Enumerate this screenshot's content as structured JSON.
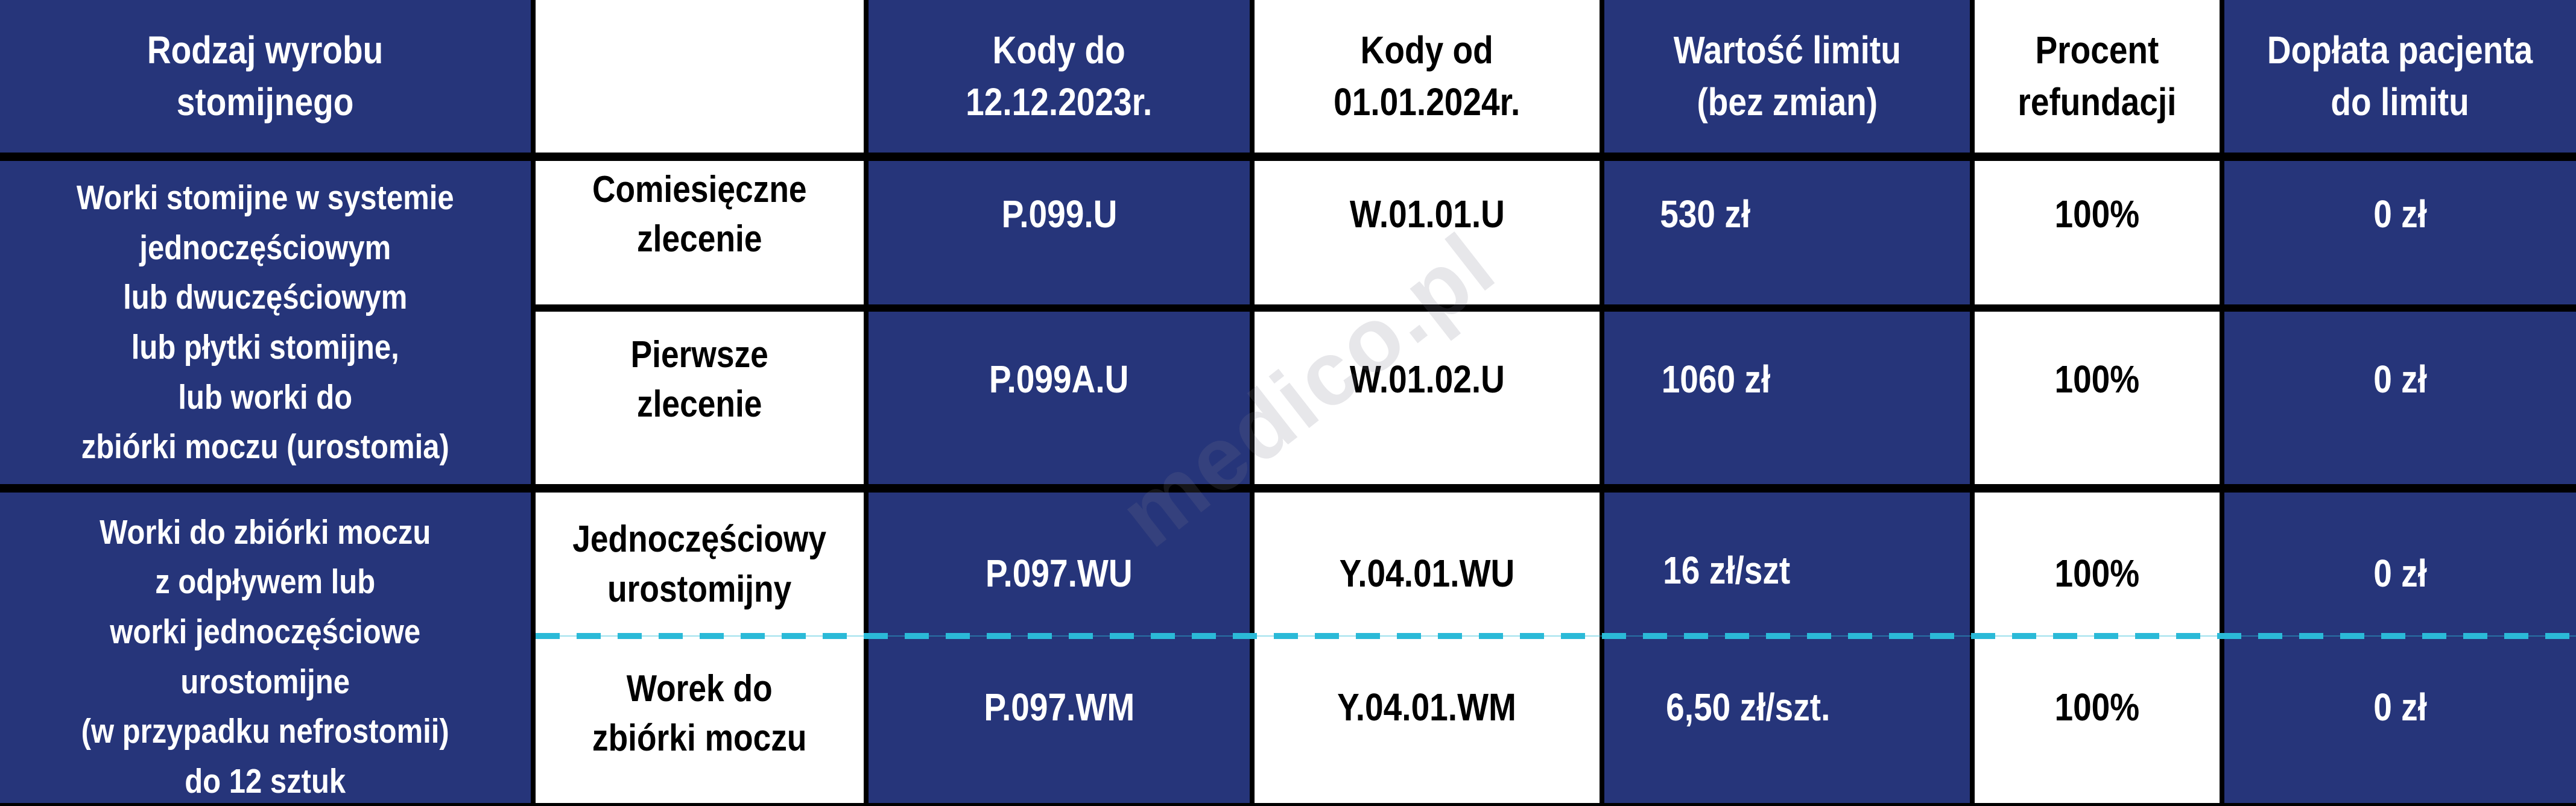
{
  "header": {
    "product_type": "Rodzaj wyrobu\nstomijnego",
    "subtype": "",
    "codes_old": "Kody do\n12.12.2023r.",
    "codes_new": "Kody od\n01.01.2024r.",
    "limit_value": "Wartość limitu\n(bez zmian)",
    "refund_percent": "Procent\nrefundacji",
    "patient_copay": "Dopłata pacjenta\ndo limitu"
  },
  "groups": [
    {
      "product_type": "Worki stomijne w systemie\njednoczęściowym\nlub dwuczęściowym\nlub płytki stomijne,\nlub worki do\nzbiórki moczu (urostomia)",
      "rows": [
        {
          "subtype": "Comiesięczne\nzlecenie",
          "code_old": "P.099.U",
          "code_new": "W.01.01.U",
          "limit": "530 zł",
          "percent": "100%",
          "copay": "0 zł"
        },
        {
          "subtype": "Pierwsze\nzlecenie",
          "code_old": "P.099A.U",
          "code_new": "W.01.02.U",
          "limit": "1060 zł",
          "percent": "100%",
          "copay": "0 zł"
        }
      ]
    },
    {
      "product_type": "Worki do zbiórki moczu\nz odpływem lub\nworki jednoczęściowe\nurostomijne\n(w przypadku nefrostomii)\ndo 12 sztuk",
      "rows": [
        {
          "subtype": "Jednoczęściowy\nurostomijny",
          "code_old": "P.097.WU",
          "code_new": "Y.04.01.WU",
          "limit": "16 zł/szt",
          "percent": "100%",
          "copay": "0 zł"
        },
        {
          "subtype": "Worek do\nzbiórki moczu",
          "code_old": "P.097.WM",
          "code_new": "Y.04.01.WM",
          "limit": "6,50 zł/szt.",
          "percent": "100%",
          "copay": "0 zł"
        }
      ]
    }
  ],
  "watermark": "medico.pl",
  "colors": {
    "navy": "#26357a",
    "white": "#ffffff",
    "grid": "#000000",
    "dashed_divider": "#2bbad8"
  }
}
